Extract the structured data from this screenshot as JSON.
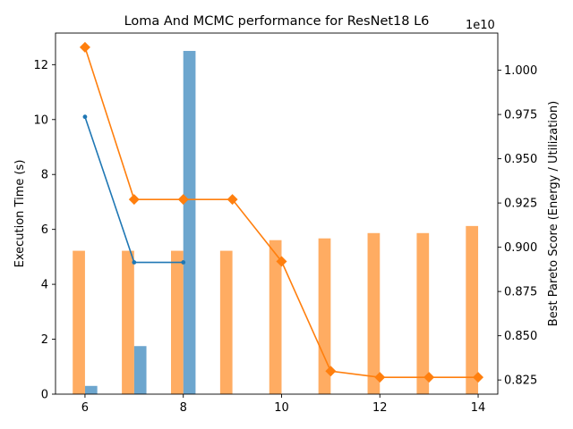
{
  "chart_data": {
    "type": "bar",
    "title": "Loma And MCMC performance for ResNet18 L6",
    "xlabel": "",
    "ylabel": "Execution Time (s)",
    "y2label": "Best Pareto Score (Energy / Utilization)",
    "y2_offset_label": "1e10",
    "xlim": [
      5.4,
      14.4
    ],
    "ylim": [
      0,
      13.15
    ],
    "y2lim": [
      8170000000.0,
      10210000000.0
    ],
    "x_ticks": [
      6,
      8,
      10,
      12,
      14
    ],
    "y_ticks": [
      0,
      2,
      4,
      6,
      8,
      10,
      12
    ],
    "y2_ticks": [
      8250000000.0,
      8500000000.0,
      8750000000.0,
      9000000000.0,
      9250000000.0,
      9500000000.0,
      9750000000.0,
      10000000000.0
    ],
    "y2_tick_labels": [
      "0.825",
      "0.850",
      "0.875",
      "0.900",
      "0.925",
      "0.950",
      "0.975",
      "1.000"
    ],
    "grid": false,
    "series": [
      {
        "kind": "bar",
        "axis": "left",
        "color": "#1f77b4",
        "opacity": 0.65,
        "offset": 0.125,
        "x": [
          6,
          7,
          8
        ],
        "values": [
          0.3,
          1.75,
          12.5
        ]
      },
      {
        "kind": "bar",
        "axis": "right",
        "color": "#ff7f0e",
        "opacity": 0.65,
        "offset": -0.125,
        "x": [
          6,
          7,
          8,
          9,
          10,
          11,
          12,
          13,
          14
        ],
        "values": [
          8980000000.0,
          8980000000.0,
          8980000000.0,
          8980000000.0,
          9040000000.0,
          9050000000.0,
          9080000000.0,
          9080000000.0,
          9120000000.0
        ]
      },
      {
        "kind": "line",
        "axis": "left",
        "color": "#1f77b4",
        "marker": "circle",
        "x": [
          6,
          7,
          8
        ],
        "values": [
          10.1,
          4.8,
          4.8
        ]
      },
      {
        "kind": "line",
        "axis": "right",
        "color": "#ff7f0e",
        "marker": "diamond",
        "x": [
          6,
          7,
          8,
          9,
          10,
          11,
          12,
          13,
          14
        ],
        "values": [
          10130000000.0,
          9270000000.0,
          9270000000.0,
          9270000000.0,
          8920000000.0,
          8300000000.0,
          8265000000.0,
          8265000000.0,
          8265000000.0
        ]
      }
    ]
  }
}
